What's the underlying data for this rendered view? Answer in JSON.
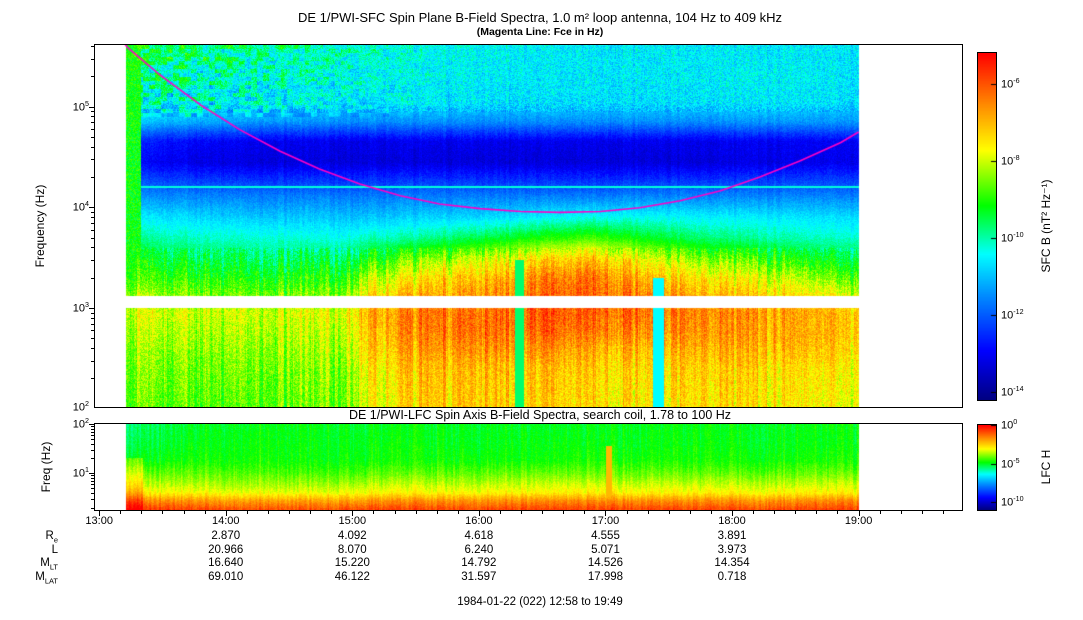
{
  "time_axis": {
    "start": 12.967,
    "end": 19.817,
    "ticks": [
      {
        "hour": 13,
        "label": "13:00"
      },
      {
        "hour": 14,
        "label": "14:00"
      },
      {
        "hour": 15,
        "label": "15:00"
      },
      {
        "hour": 16,
        "label": "16:00"
      },
      {
        "hour": 17,
        "label": "17:00"
      },
      {
        "hour": 18,
        "label": "18:00"
      },
      {
        "hour": 19,
        "label": "19:00"
      }
    ]
  },
  "colormap": [
    [
      0.0,
      "#000082"
    ],
    [
      0.14,
      "#0000ff"
    ],
    [
      0.3,
      "#008cff"
    ],
    [
      0.42,
      "#00ffff"
    ],
    [
      0.56,
      "#00ff00"
    ],
    [
      0.72,
      "#ffff00"
    ],
    [
      0.85,
      "#ff8c00"
    ],
    [
      1.0,
      "#ff0000"
    ]
  ],
  "chart_data": [
    {
      "type": "heatmap",
      "id": "sfc",
      "title": "DE 1/PWI-SFC  Spin Plane B-Field Spectra, 1.0 m² loop antenna, 104 Hz to 409 kHz",
      "subtitle": "(Magenta Line: Fce in Hz)",
      "ylabel": "Frequency (Hz)",
      "y_range_hz": [
        104,
        409000
      ],
      "ytick_exponents": [
        5,
        4,
        3,
        2
      ],
      "colorbar": {
        "label": "SFC B (nT² Hz⁻¹)",
        "top_exp": -5.2,
        "bottom_exp": -14.2,
        "tick_exponents": [
          -6,
          -8,
          -10,
          -12,
          -14
        ]
      },
      "features": {
        "data_start": 13.21,
        "data_end": 19.0,
        "gap_band_log10": [
          3.005,
          3.115
        ],
        "interference_line_hz": 16000,
        "start_stripe_end": 13.33,
        "dropouts": [
          {
            "t": 16.32,
            "w": 0.035,
            "lf_max": 3.48,
            "cap": 0.5
          },
          {
            "t": 17.42,
            "w": 0.045,
            "lf_max": 3.3,
            "cap": 0.42
          }
        ]
      },
      "fce_line": {
        "color": "#ff00c8",
        "points_hour_hz": [
          [
            13.18,
            450000
          ],
          [
            13.23,
            380000
          ],
          [
            13.48,
            206000
          ],
          [
            13.8,
            104000
          ],
          [
            14.11,
            59000
          ],
          [
            14.43,
            36000
          ],
          [
            14.74,
            24000
          ],
          [
            15.06,
            17000
          ],
          [
            15.38,
            13000
          ],
          [
            15.69,
            10800
          ],
          [
            16.01,
            9700
          ],
          [
            16.33,
            9100
          ],
          [
            16.64,
            8900
          ],
          [
            16.96,
            9100
          ],
          [
            17.27,
            9900
          ],
          [
            17.59,
            11600
          ],
          [
            17.91,
            14600
          ],
          [
            18.22,
            20000
          ],
          [
            18.54,
            29000
          ],
          [
            18.86,
            44000
          ],
          [
            19.0,
            56000
          ]
        ]
      },
      "grid": {
        "times": [
          13.25,
          13.75,
          14.25,
          14.9,
          15.1,
          15.5,
          16.0,
          16.5,
          16.9,
          17.3,
          17.75,
          18.25,
          18.75,
          19.0
        ],
        "rows": [
          {
            "f": 409000,
            "v": [
              0.52,
              0.5,
              0.48,
              0.46,
              0.44,
              0.42,
              0.42,
              0.41,
              0.4,
              0.4,
              0.4,
              0.4,
              0.4,
              0.4
            ]
          },
          {
            "f": 300000,
            "v": [
              0.5,
              0.51,
              0.46,
              0.45,
              0.43,
              0.42,
              0.41,
              0.4,
              0.4,
              0.4,
              0.4,
              0.4,
              0.4,
              0.4
            ]
          },
          {
            "f": 200000,
            "v": [
              0.47,
              0.45,
              0.44,
              0.43,
              0.42,
              0.41,
              0.41,
              0.4,
              0.4,
              0.4,
              0.4,
              0.41,
              0.4,
              0.4
            ]
          },
          {
            "f": 110000,
            "v": [
              0.44,
              0.42,
              0.41,
              0.4,
              0.4,
              0.4,
              0.39,
              0.39,
              0.39,
              0.39,
              0.39,
              0.4,
              0.39,
              0.39
            ]
          },
          {
            "f": 70000,
            "v": [
              0.36,
              0.33,
              0.31,
              0.3,
              0.3,
              0.3,
              0.3,
              0.3,
              0.3,
              0.3,
              0.3,
              0.31,
              0.31,
              0.32
            ]
          },
          {
            "f": 45000,
            "v": [
              0.18,
              0.14,
              0.12,
              0.12,
              0.12,
              0.12,
              0.12,
              0.12,
              0.12,
              0.12,
              0.12,
              0.13,
              0.13,
              0.14
            ]
          },
          {
            "f": 28000,
            "v": [
              0.14,
              0.11,
              0.1,
              0.1,
              0.1,
              0.1,
              0.1,
              0.1,
              0.1,
              0.1,
              0.1,
              0.11,
              0.12,
              0.12
            ]
          },
          {
            "f": 19000,
            "v": [
              0.22,
              0.2,
              0.19,
              0.19,
              0.19,
              0.19,
              0.19,
              0.19,
              0.19,
              0.19,
              0.19,
              0.2,
              0.21,
              0.21
            ]
          },
          {
            "f": 13000,
            "v": [
              0.3,
              0.29,
              0.28,
              0.28,
              0.28,
              0.28,
              0.28,
              0.28,
              0.28,
              0.29,
              0.29,
              0.29,
              0.29,
              0.29
            ]
          },
          {
            "f": 8000,
            "v": [
              0.4,
              0.38,
              0.36,
              0.36,
              0.36,
              0.37,
              0.38,
              0.41,
              0.43,
              0.42,
              0.41,
              0.4,
              0.39,
              0.39
            ]
          },
          {
            "f": 5000,
            "v": [
              0.48,
              0.45,
              0.44,
              0.43,
              0.45,
              0.47,
              0.52,
              0.57,
              0.6,
              0.55,
              0.5,
              0.47,
              0.45,
              0.45
            ]
          },
          {
            "f": 3000,
            "v": [
              0.55,
              0.52,
              0.5,
              0.51,
              0.57,
              0.63,
              0.7,
              0.77,
              0.8,
              0.72,
              0.65,
              0.6,
              0.55,
              0.55
            ]
          },
          {
            "f": 2000,
            "v": [
              0.6,
              0.57,
              0.55,
              0.57,
              0.66,
              0.73,
              0.79,
              0.86,
              0.88,
              0.8,
              0.75,
              0.7,
              0.64,
              0.62
            ]
          },
          {
            "f": 1400,
            "v": [
              0.66,
              0.62,
              0.61,
              0.63,
              0.73,
              0.79,
              0.83,
              0.89,
              0.9,
              0.85,
              0.8,
              0.76,
              0.72,
              0.7
            ]
          },
          {
            "f": 900,
            "v": [
              0.7,
              0.68,
              0.68,
              0.7,
              0.8,
              0.86,
              0.88,
              0.92,
              0.9,
              0.88,
              0.86,
              0.83,
              0.81,
              0.8
            ]
          },
          {
            "f": 600,
            "v": [
              0.68,
              0.66,
              0.66,
              0.68,
              0.78,
              0.85,
              0.88,
              0.9,
              0.88,
              0.85,
              0.85,
              0.82,
              0.81,
              0.8
            ]
          },
          {
            "f": 400,
            "v": [
              0.66,
              0.64,
              0.64,
              0.66,
              0.76,
              0.82,
              0.85,
              0.85,
              0.82,
              0.8,
              0.82,
              0.8,
              0.79,
              0.78
            ]
          },
          {
            "f": 250,
            "v": [
              0.64,
              0.62,
              0.62,
              0.64,
              0.73,
              0.78,
              0.8,
              0.8,
              0.78,
              0.76,
              0.78,
              0.76,
              0.75,
              0.75
            ]
          },
          {
            "f": 104,
            "v": [
              0.62,
              0.6,
              0.6,
              0.62,
              0.7,
              0.76,
              0.78,
              0.78,
              0.76,
              0.74,
              0.76,
              0.74,
              0.73,
              0.73
            ]
          }
        ]
      }
    },
    {
      "type": "heatmap",
      "id": "lfc",
      "title": "DE 1/PWI-LFC  Spin Axis B-Field Spectra, search coil, 1.78 to 100 Hz",
      "ylabel": "Freq (Hz)",
      "y_range_hz": [
        1.78,
        100
      ],
      "ytick_exponents": [
        2,
        1
      ],
      "colorbar": {
        "label": "LFC H",
        "top_exp": 0,
        "bottom_exp": -11,
        "tick_exponents": [
          0,
          -5,
          -10
        ]
      },
      "features": {
        "data_start": 13.21,
        "data_end": 19.0,
        "streaks": [
          {
            "t": 17.03,
            "w": 0.022,
            "lf_max": 1.55,
            "v": 0.8
          }
        ],
        "start_boost": {
          "t_end": 13.35,
          "lf_max": 1.3,
          "add": 0.08
        }
      },
      "grid": {
        "times": [
          13.25,
          13.75,
          14.25,
          14.9,
          15.1,
          15.5,
          16.0,
          16.5,
          16.9,
          17.3,
          17.75,
          18.25,
          18.75,
          19.0
        ],
        "rows": [
          {
            "f": 100,
            "v": [
              0.5,
              0.54,
              0.55,
              0.55,
              0.54,
              0.55,
              0.55,
              0.54,
              0.55,
              0.55,
              0.55,
              0.55,
              0.55,
              0.55
            ]
          },
          {
            "f": 40,
            "v": [
              0.52,
              0.55,
              0.56,
              0.55,
              0.55,
              0.56,
              0.55,
              0.55,
              0.56,
              0.55,
              0.56,
              0.55,
              0.55,
              0.55
            ]
          },
          {
            "f": 18,
            "v": [
              0.55,
              0.57,
              0.57,
              0.56,
              0.56,
              0.57,
              0.57,
              0.56,
              0.58,
              0.57,
              0.57,
              0.57,
              0.57,
              0.57
            ]
          },
          {
            "f": 10,
            "v": [
              0.62,
              0.62,
              0.61,
              0.6,
              0.61,
              0.62,
              0.62,
              0.62,
              0.63,
              0.62,
              0.62,
              0.62,
              0.62,
              0.62
            ]
          },
          {
            "f": 6,
            "v": [
              0.68,
              0.67,
              0.66,
              0.66,
              0.67,
              0.68,
              0.68,
              0.68,
              0.69,
              0.68,
              0.68,
              0.68,
              0.68,
              0.68
            ]
          },
          {
            "f": 4,
            "v": [
              0.74,
              0.72,
              0.71,
              0.71,
              0.72,
              0.73,
              0.73,
              0.73,
              0.74,
              0.73,
              0.73,
              0.73,
              0.73,
              0.73
            ]
          },
          {
            "f": 2.8,
            "v": [
              0.85,
              0.83,
              0.82,
              0.82,
              0.83,
              0.84,
              0.84,
              0.84,
              0.85,
              0.84,
              0.84,
              0.84,
              0.84,
              0.84
            ]
          },
          {
            "f": 1.78,
            "v": [
              0.95,
              0.93,
              0.92,
              0.92,
              0.93,
              0.93,
              0.93,
              0.93,
              0.94,
              0.93,
              0.93,
              0.93,
              0.93,
              0.93
            ]
          }
        ]
      }
    }
  ],
  "ephemeris": {
    "hours": [
      14,
      15,
      16,
      17,
      18
    ],
    "rows": [
      {
        "label": "R",
        "sub": "e",
        "values": [
          "2.870",
          "4.092",
          "4.618",
          "4.555",
          "3.891"
        ]
      },
      {
        "label": "L",
        "sub": "",
        "values": [
          "20.966",
          "8.070",
          "6.240",
          "5.071",
          "3.973"
        ]
      },
      {
        "label": "M",
        "sub": "LT",
        "values": [
          "16.640",
          "15.220",
          "14.792",
          "14.526",
          "14.354"
        ]
      },
      {
        "label": "M",
        "sub": "LAT",
        "values": [
          "69.010",
          "46.122",
          "31.597",
          "17.998",
          "0.718"
        ]
      }
    ]
  },
  "footer": {
    "text": "1984-01-22 (022) 12:58 to 19:49"
  }
}
